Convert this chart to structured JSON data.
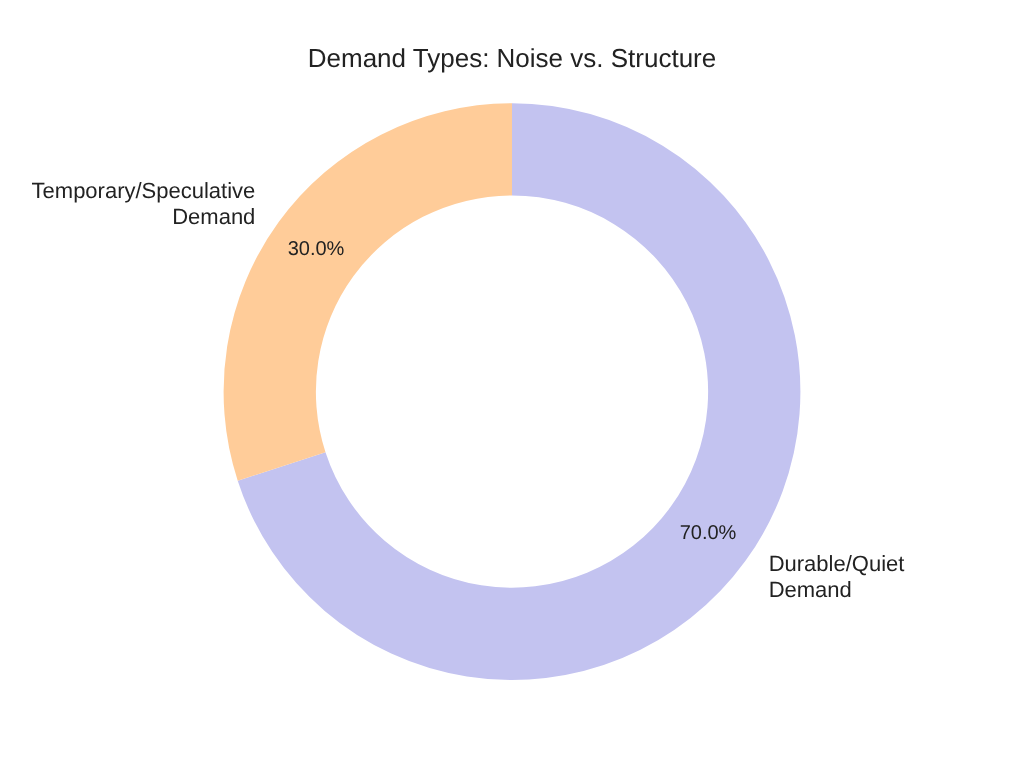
{
  "chart_data": {
    "type": "donut",
    "title": "Demand Types: Noise vs. Structure",
    "categories": [
      "Durable/Quiet Demand",
      "Temporary/Speculative Demand"
    ],
    "values": [
      70,
      30
    ],
    "colors": [
      "#c3c3f0",
      "#ffcc99"
    ],
    "value_labels": [
      "70.0%",
      "30.0%"
    ],
    "legend": false
  }
}
